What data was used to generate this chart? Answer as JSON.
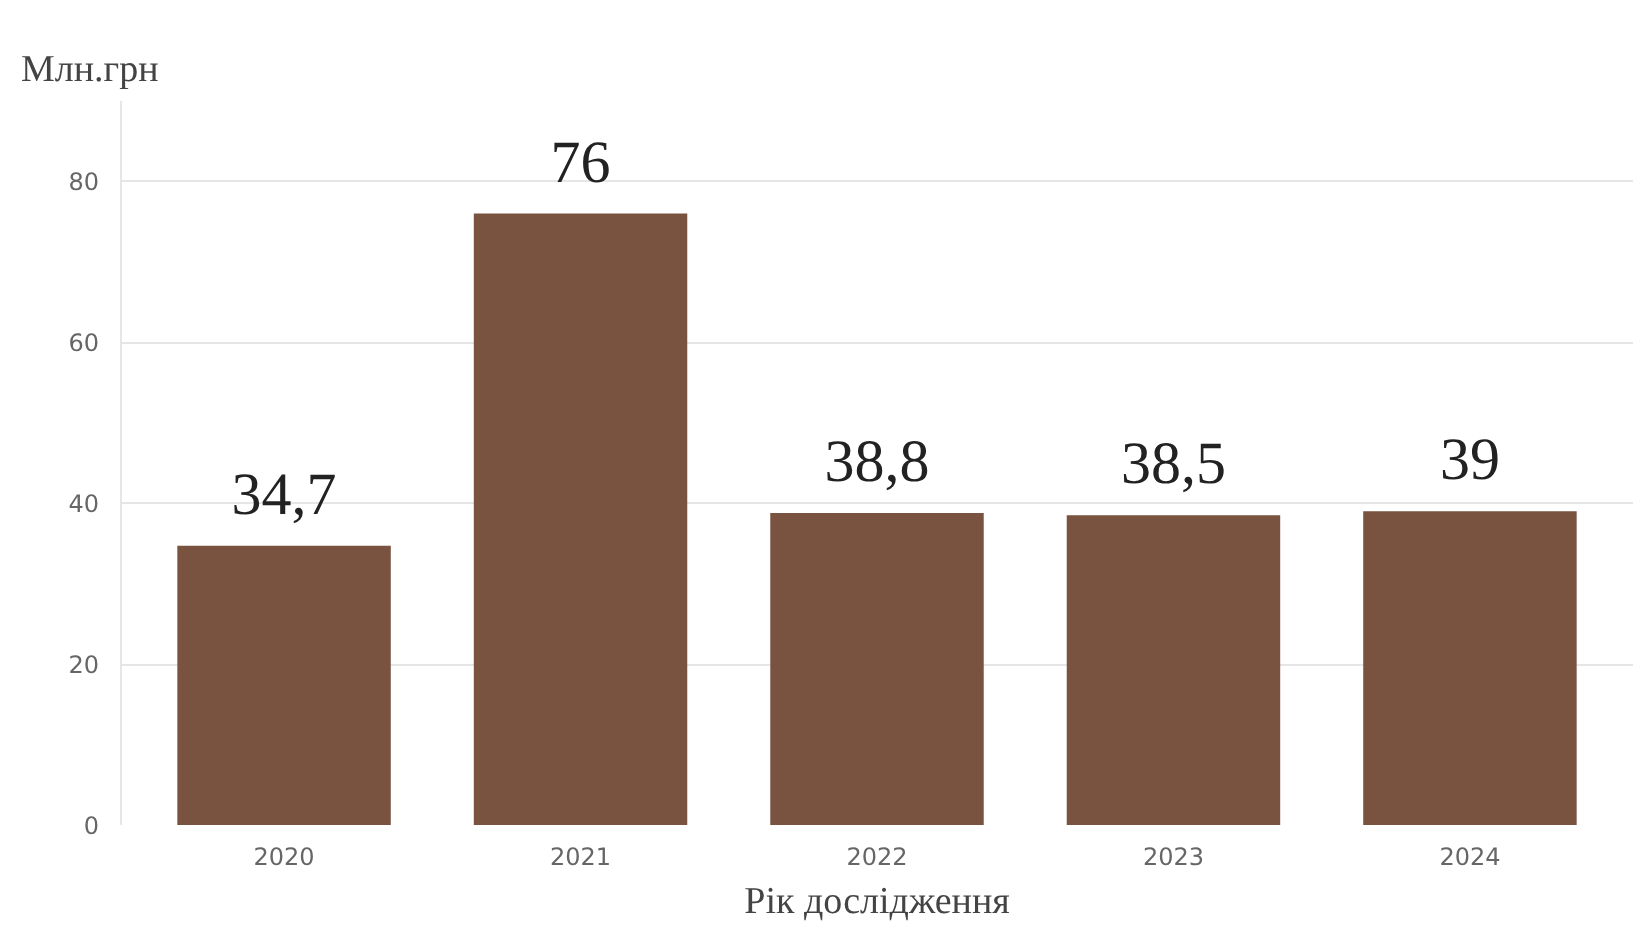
{
  "chart_data": {
    "type": "bar",
    "ylabel": "Млн.грн",
    "xlabel": "Рік дослідження",
    "categories": [
      "2020",
      "2021",
      "2022",
      "2023",
      "2024"
    ],
    "values": [
      34.7,
      76,
      38.8,
      38.5,
      39
    ],
    "value_labels": [
      "34,7",
      "76",
      "38,8",
      "38,5",
      "39"
    ],
    "color": "#7a5240",
    "ylim": [
      0,
      90
    ],
    "yticks": [
      0,
      20,
      40,
      60,
      80
    ],
    "grid": "y"
  }
}
